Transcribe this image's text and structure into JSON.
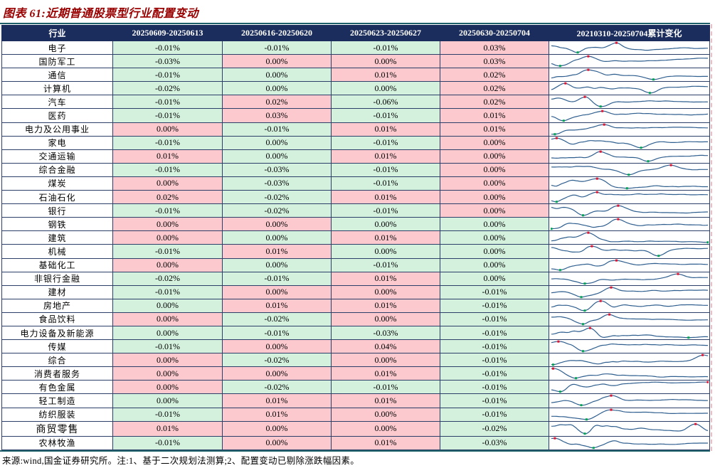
{
  "title": "图表 61:近期普通股票型行业配置变动",
  "footer": {
    "source_note": "来源:wind,国金证券研究所。注:1、基于二次规划法测算;2、配置变动已剔除涨跌幅因素。"
  },
  "colors": {
    "title_color": "#990000",
    "header_bg": "#1b2d5c",
    "header_text": "#ffffff",
    "cell_green": "#d4f1de",
    "cell_pink": "#fbc9ce",
    "grid_border": "#2b3f68",
    "rule_color": "#1c5f68",
    "spark_line": "#2f5f8f",
    "spark_max": "#e8112d",
    "spark_min": "#00a651",
    "page_edge_dash": "#f2bcc6"
  },
  "icons": {
    "max_marker": "red-square-max-point",
    "min_marker": "green-square-min-point"
  },
  "chart_data": {
    "type": "table",
    "title": "近期普通股票型行业配置变动",
    "sparkline_period": "20210310-20250704",
    "columns": [
      "行业",
      "20250609-20250613",
      "20250616-20250620",
      "20250623-20250627",
      "20250630-20250704",
      "20210310-20250704累计变化"
    ],
    "rows": [
      {
        "industry": "电子",
        "values": [
          "-0.01%",
          "-0.01%",
          "-0.01%",
          "0.03%"
        ],
        "fills": [
          "green",
          "green",
          "green",
          "pink"
        ],
        "sparkline": {
          "max_pos": 0.42,
          "min_pos": 0.17
        }
      },
      {
        "industry": "国防军工",
        "values": [
          "-0.03%",
          "0.00%",
          "0.00%",
          "0.03%"
        ],
        "fills": [
          "green",
          "pink",
          "pink",
          "pink"
        ],
        "sparkline": {
          "max_pos": 0.25,
          "min_pos": 0.06
        }
      },
      {
        "industry": "通信",
        "values": [
          "-0.01%",
          "0.00%",
          "0.01%",
          "0.02%"
        ],
        "fills": [
          "green",
          "green",
          "pink",
          "pink"
        ],
        "sparkline": {
          "max_pos": 0.24,
          "min_pos": 0.65
        }
      },
      {
        "industry": "计算机",
        "values": [
          "-0.02%",
          "0.00%",
          "0.00%",
          "0.02%"
        ],
        "fills": [
          "green",
          "green",
          "green",
          "pink"
        ],
        "sparkline": {
          "max_pos": 0.08,
          "min_pos": 0.64
        }
      },
      {
        "industry": "汽车",
        "values": [
          "-0.01%",
          "0.02%",
          "-0.06%",
          "0.02%"
        ],
        "fills": [
          "green",
          "pink",
          "green",
          "pink"
        ],
        "sparkline": {
          "max_pos": 0.23,
          "min_pos": 0.3
        }
      },
      {
        "industry": "医药",
        "values": [
          "-0.01%",
          "0.03%",
          "-0.01%",
          "0.01%"
        ],
        "fills": [
          "green",
          "pink",
          "green",
          "pink"
        ],
        "sparkline": {
          "max_pos": 0.33,
          "min_pos": 0.07
        }
      },
      {
        "industry": "电力及公用事业",
        "values": [
          "0.00%",
          "-0.01%",
          "0.01%",
          "0.01%"
        ],
        "fills": [
          "pink",
          "green",
          "pink",
          "pink"
        ],
        "sparkline": {
          "max_pos": 0.32,
          "min_pos": 0.02
        }
      },
      {
        "industry": "家电",
        "values": [
          "-0.01%",
          "0.00%",
          "-0.01%",
          "0.00%"
        ],
        "fills": [
          "green",
          "green",
          "green",
          "pink"
        ],
        "sparkline": {
          "max_pos": 0.03,
          "min_pos": 0.57
        }
      },
      {
        "industry": "交通运输",
        "values": [
          "0.01%",
          "0.00%",
          "0.01%",
          "0.00%"
        ],
        "fills": [
          "pink",
          "green",
          "pink",
          "pink"
        ],
        "sparkline": {
          "max_pos": 0.3,
          "min_pos": 0.62
        }
      },
      {
        "industry": "综合金融",
        "values": [
          "-0.01%",
          "-0.03%",
          "-0.01%",
          "0.00%"
        ],
        "fills": [
          "green",
          "green",
          "green",
          "pink"
        ],
        "sparkline": {
          "max_pos": 0.76,
          "min_pos": 0.5
        }
      },
      {
        "industry": "煤炭",
        "values": [
          "0.00%",
          "-0.03%",
          "-0.01%",
          "0.00%"
        ],
        "fills": [
          "pink",
          "green",
          "green",
          "pink"
        ],
        "sparkline": {
          "max_pos": 0.3,
          "min_pos": 0.02
        }
      },
      {
        "industry": "石油石化",
        "values": [
          "0.02%",
          "-0.02%",
          "0.01%",
          "0.00%"
        ],
        "fills": [
          "pink",
          "green",
          "pink",
          "pink"
        ],
        "sparkline": {
          "max_pos": 0.29,
          "min_pos": 0.03
        }
      },
      {
        "industry": "银行",
        "values": [
          "-0.01%",
          "-0.02%",
          "-0.01%",
          "0.00%"
        ],
        "fills": [
          "green",
          "green",
          "green",
          "pink"
        ],
        "sparkline": {
          "max_pos": 0.42,
          "min_pos": 0.2
        }
      },
      {
        "industry": "钢铁",
        "values": [
          "0.00%",
          "0.00%",
          "0.00%",
          "0.00%"
        ],
        "fills": [
          "pink",
          "pink",
          "green",
          "green"
        ],
        "sparkline": {
          "max_pos": 0.42,
          "min_pos": 0.01
        }
      },
      {
        "industry": "建筑",
        "values": [
          "0.00%",
          "0.00%",
          "0.01%",
          "0.00%"
        ],
        "fills": [
          "pink",
          "green",
          "pink",
          "green"
        ],
        "sparkline": {
          "max_pos": 0.24,
          "min_pos": 0.01
        }
      },
      {
        "industry": "机械",
        "values": [
          "-0.01%",
          "0.01%",
          "0.00%",
          "0.00%"
        ],
        "fills": [
          "green",
          "pink",
          "green",
          "green"
        ],
        "sparkline": {
          "max_pos": 0.26,
          "min_pos": 0.68
        }
      },
      {
        "industry": "基础化工",
        "values": [
          "0.00%",
          "0.00%",
          "-0.01%",
          "0.00%"
        ],
        "fills": [
          "pink",
          "green",
          "green",
          "green"
        ],
        "sparkline": {
          "max_pos": 0.4,
          "min_pos": 0.07
        }
      },
      {
        "industry": "非银行金融",
        "values": [
          "-0.02%",
          "-0.01%",
          "0.01%",
          "0.00%"
        ],
        "fills": [
          "green",
          "green",
          "pink",
          "green"
        ],
        "sparkline": {
          "max_pos": 0.8,
          "min_pos": 0.21
        }
      },
      {
        "industry": "建材",
        "values": [
          "-0.01%",
          "0.00%",
          "0.00%",
          "-0.01%"
        ],
        "fills": [
          "green",
          "pink",
          "pink",
          "green"
        ],
        "sparkline": {
          "max_pos": 0.37,
          "min_pos": 0.21
        }
      },
      {
        "industry": "房地产",
        "values": [
          "0.00%",
          "0.01%",
          "0.01%",
          "-0.01%"
        ],
        "fills": [
          "green",
          "pink",
          "pink",
          "green"
        ],
        "sparkline": {
          "max_pos": 0.31,
          "min_pos": 0.21
        }
      },
      {
        "industry": "食品饮料",
        "values": [
          "0.00%",
          "-0.02%",
          "0.00%",
          "-0.01%"
        ],
        "fills": [
          "pink",
          "green",
          "pink",
          "green"
        ],
        "sparkline": {
          "max_pos": 0.37,
          "min_pos": 0.19
        }
      },
      {
        "industry": "电力设备及新能源",
        "values": [
          "0.00%",
          "-0.01%",
          "-0.03%",
          "-0.01%"
        ],
        "fills": [
          "green",
          "green",
          "green",
          "green"
        ],
        "sparkline": {
          "max_pos": 0.26,
          "min_pos": 0.32
        }
      },
      {
        "industry": "传媒",
        "values": [
          "-0.01%",
          "0.00%",
          "0.04%",
          "-0.01%"
        ],
        "fills": [
          "green",
          "pink",
          "pink",
          "green"
        ],
        "sparkline": {
          "max_pos": 0.05,
          "min_pos": 0.2
        }
      },
      {
        "industry": "综合",
        "values": [
          "0.00%",
          "-0.02%",
          "0.00%",
          "-0.01%"
        ],
        "fills": [
          "pink",
          "green",
          "pink",
          "green"
        ],
        "sparkline": {
          "max_pos": 0.97,
          "min_pos": 0.01
        }
      },
      {
        "industry": "消费者服务",
        "values": [
          "0.00%",
          "0.00%",
          "0.01%",
          "-0.01%"
        ],
        "fills": [
          "pink",
          "pink",
          "pink",
          "green"
        ],
        "sparkline": {
          "max_pos": 0.02,
          "min_pos": 0.15
        }
      },
      {
        "industry": "有色金属",
        "values": [
          "0.00%",
          "-0.02%",
          "-0.01%",
          "-0.01%"
        ],
        "fills": [
          "pink",
          "green",
          "green",
          "green"
        ],
        "sparkline": {
          "max_pos": 0.13,
          "min_pos": 0.06
        }
      },
      {
        "industry": "轻工制造",
        "values": [
          "0.00%",
          "0.01%",
          "0.01%",
          "-0.01%"
        ],
        "fills": [
          "green",
          "pink",
          "pink",
          "green"
        ],
        "sparkline": {
          "max_pos": 0.38,
          "min_pos": 0.2
        }
      },
      {
        "industry": "纺织服装",
        "values": [
          "-0.01%",
          "0.01%",
          "0.00%",
          "-0.01%"
        ],
        "fills": [
          "green",
          "pink",
          "pink",
          "green"
        ],
        "sparkline": {
          "max_pos": 0.38,
          "min_pos": 0.22
        }
      },
      {
        "industry": "商贸零售",
        "values": [
          "0.01%",
          "0.00%",
          "0.00%",
          "-0.02%"
        ],
        "fills": [
          "pink",
          "pink",
          "pink",
          "green"
        ],
        "large_label": true,
        "sparkline": {
          "max_pos": 0.92,
          "min_pos": 0.22
        }
      },
      {
        "industry": "农林牧渔",
        "values": [
          "-0.01%",
          "0.00%",
          "0.01%",
          "-0.03%"
        ],
        "fills": [
          "green",
          "pink",
          "pink",
          "green"
        ],
        "sparkline": {
          "max_pos": 0.03,
          "min_pos": 0.27
        }
      }
    ]
  }
}
